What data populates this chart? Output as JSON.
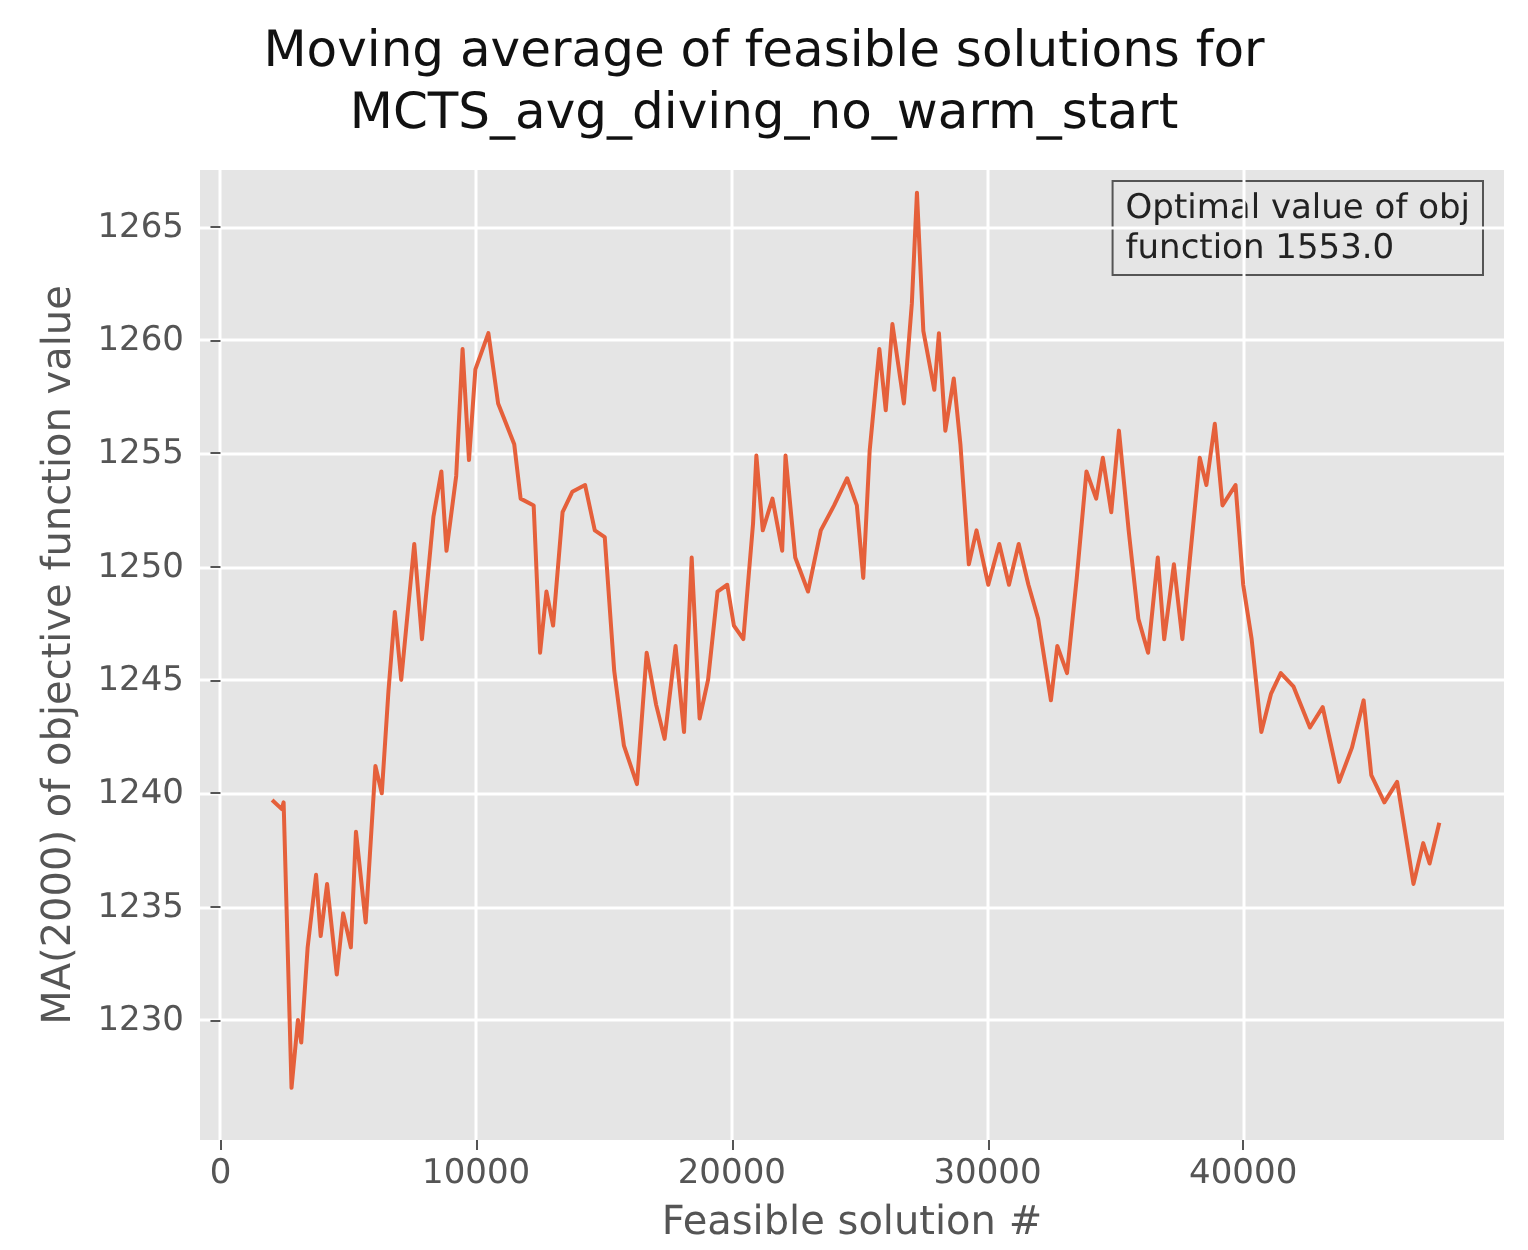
{
  "chart_data": {
    "type": "line",
    "title": "Moving average of feasible solutions for\nMCTS_avg_diving_no_warm_start",
    "xlabel": "Feasible solution #",
    "ylabel": "MA(2000) of objective function value",
    "annotations": [
      "Optimal value of obj\nfunction 1553.0"
    ],
    "x": [
      2020,
      2400,
      2470,
      2780,
      3030,
      3160,
      3410,
      3740,
      3920,
      4170,
      4550,
      4800,
      5100,
      5300,
      5680,
      6060,
      6310,
      6570,
      6820,
      7070,
      7580,
      7880,
      8330,
      8640,
      8840,
      9220,
      9470,
      9720,
      9970,
      10480,
      10860,
      11490,
      11740,
      12250,
      12500,
      12750,
      13010,
      13380,
      13760,
      14260,
      14640,
      15030,
      15400,
      15780,
      16290,
      16670,
      17040,
      17370,
      17800,
      18130,
      18430,
      18740,
      19070,
      19440,
      19820,
      20080,
      20450,
      20830,
      20960,
      21210,
      21590,
      21970,
      22100,
      22480,
      22980,
      23480,
      24000,
      24510,
      24890,
      25140,
      25390,
      25770,
      26020,
      26280,
      26730,
      27040,
      27240,
      27490,
      27920,
      28100,
      28350,
      28680,
      28940,
      29270,
      29570,
      30030,
      30460,
      30840,
      31220,
      31600,
      31980,
      32480,
      32730,
      33110,
      33490,
      33870,
      34250,
      34510,
      34840,
      35140,
      35520,
      35900,
      36280,
      36660,
      36910,
      37290,
      37620,
      37920,
      38300,
      38560,
      38890,
      39190,
      39700,
      40000,
      40330,
      40710,
      41090,
      41470,
      41970,
      42610,
      43110,
      43750,
      44250,
      44710,
      45010,
      45520,
      46020,
      46660,
      47040,
      47290,
      47670
    ],
    "series": [
      {
        "color": "#e5603b",
        "values": [
          1239.7,
          1239.3,
          1239.6,
          1227.0,
          1230.0,
          1229.0,
          1233.2,
          1236.4,
          1233.7,
          1236.0,
          1232.0,
          1234.7,
          1233.2,
          1238.3,
          1234.3,
          1241.2,
          1240.0,
          1244.5,
          1248.0,
          1245.0,
          1251.0,
          1246.8,
          1252.2,
          1254.2,
          1250.7,
          1254.0,
          1259.6,
          1254.7,
          1258.7,
          1260.3,
          1257.2,
          1255.4,
          1253.0,
          1252.7,
          1246.2,
          1248.9,
          1247.4,
          1252.4,
          1253.3,
          1253.6,
          1251.6,
          1251.3,
          1245.4,
          1242.1,
          1240.4,
          1246.2,
          1243.9,
          1242.4,
          1246.5,
          1242.7,
          1250.4,
          1243.3,
          1245.0,
          1248.9,
          1249.2,
          1247.4,
          1246.8,
          1251.9,
          1254.9,
          1251.6,
          1253.0,
          1250.7,
          1254.9,
          1250.4,
          1248.9,
          1251.6,
          1252.7,
          1253.9,
          1252.7,
          1249.5,
          1255.1,
          1259.6,
          1256.9,
          1260.7,
          1257.2,
          1261.6,
          1266.5,
          1260.4,
          1257.8,
          1260.3,
          1256.0,
          1258.3,
          1255.4,
          1250.1,
          1251.6,
          1249.2,
          1251.0,
          1249.2,
          1251.0,
          1249.2,
          1247.7,
          1244.1,
          1246.5,
          1245.3,
          1249.5,
          1254.2,
          1253.0,
          1254.8,
          1252.4,
          1256.0,
          1251.6,
          1247.7,
          1246.2,
          1250.4,
          1246.8,
          1250.1,
          1246.8,
          1250.4,
          1254.8,
          1253.6,
          1256.3,
          1252.7,
          1253.6,
          1249.2,
          1246.8,
          1242.7,
          1244.4,
          1245.3,
          1244.7,
          1242.9,
          1243.8,
          1240.5,
          1242.0,
          1244.1,
          1240.8,
          1239.6,
          1240.5,
          1236.0,
          1237.8,
          1236.9,
          1238.7
        ]
      }
    ],
    "xlim": [
      -800,
      50200
    ],
    "ylim": [
      1224.7,
      1267.5
    ],
    "xticks": [
      0,
      10000,
      20000,
      30000,
      40000
    ],
    "yticks": [
      1230,
      1235,
      1240,
      1245,
      1250,
      1255,
      1260,
      1265
    ],
    "grid": true
  }
}
